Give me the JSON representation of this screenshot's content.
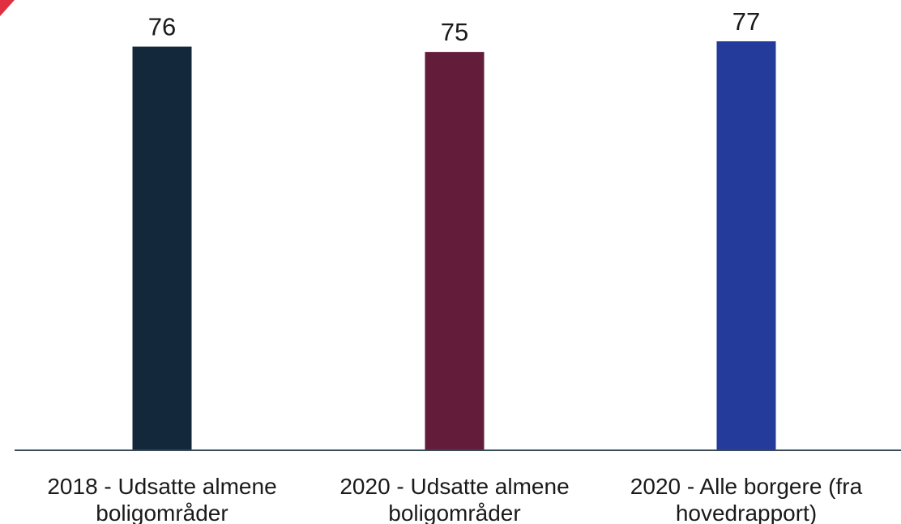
{
  "chart_data": {
    "type": "bar",
    "categories": [
      [
        "2018 - Udsatte almene",
        "boligområder"
      ],
      [
        "2020 - Udsatte almene",
        "boligområder"
      ],
      [
        "2020 - Alle borgere (fra",
        "hovedrapport)"
      ]
    ],
    "values": [
      76,
      75,
      77
    ],
    "data_labels": [
      "76",
      "75",
      "77"
    ],
    "colors": [
      "#14283b",
      "#631d3b",
      "#243b9c"
    ],
    "axis_color": "#3a4a5a",
    "ylim": [
      0,
      77
    ],
    "grid": false,
    "legend": "none"
  }
}
